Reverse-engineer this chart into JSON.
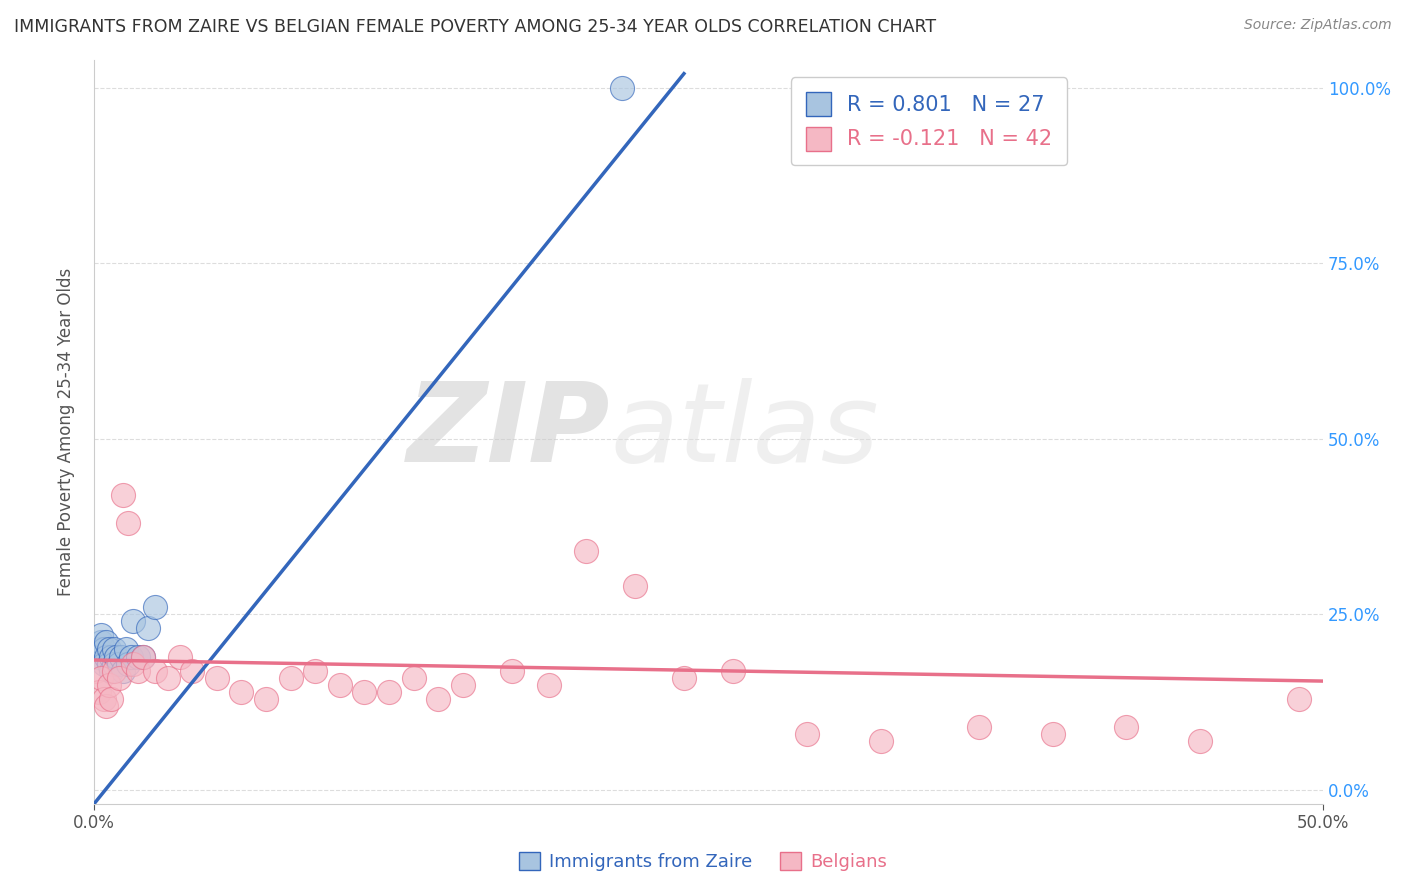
{
  "title": "IMMIGRANTS FROM ZAIRE VS BELGIAN FEMALE POVERTY AMONG 25-34 YEAR OLDS CORRELATION CHART",
  "source": "Source: ZipAtlas.com",
  "ylabel": "Female Poverty Among 25-34 Year Olds",
  "xlim": [
    0.0,
    0.5
  ],
  "ylim": [
    -0.02,
    1.04
  ],
  "xticklabels_bottom": [
    "0.0%",
    "50.0%"
  ],
  "xtickvalues_bottom": [
    0.0,
    0.5
  ],
  "yticklabels_right": [
    "100.0%",
    "75.0%",
    "50.0%",
    "25.0%",
    "0.0%"
  ],
  "ytickvalues_right": [
    1.0,
    0.75,
    0.5,
    0.25,
    0.0
  ],
  "blue_R": 0.801,
  "blue_N": 27,
  "pink_R": -0.121,
  "pink_N": 42,
  "blue_color": "#A8C4E0",
  "pink_color": "#F5B8C4",
  "blue_line_color": "#3366BB",
  "pink_line_color": "#E8708A",
  "legend_label_blue": "Immigrants from Zaire",
  "legend_label_pink": "Belgians",
  "watermark_zip": "ZIP",
  "watermark_atlas": "atlas",
  "grid_color": "#DDDDDD",
  "blue_points_x": [
    0.001,
    0.002,
    0.003,
    0.003,
    0.004,
    0.004,
    0.005,
    0.005,
    0.006,
    0.006,
    0.007,
    0.007,
    0.008,
    0.008,
    0.009,
    0.01,
    0.011,
    0.012,
    0.013,
    0.014,
    0.015,
    0.016,
    0.018,
    0.02,
    0.022,
    0.025,
    0.215
  ],
  "blue_points_y": [
    0.19,
    0.2,
    0.21,
    0.22,
    0.2,
    0.18,
    0.21,
    0.19,
    0.2,
    0.18,
    0.19,
    0.17,
    0.2,
    0.18,
    0.19,
    0.18,
    0.19,
    0.17,
    0.2,
    0.18,
    0.19,
    0.24,
    0.19,
    0.19,
    0.23,
    0.26,
    1.0
  ],
  "blue_line_x0": 0.0,
  "blue_line_y0": -0.02,
  "blue_line_x1": 0.24,
  "blue_line_y1": 1.02,
  "pink_line_x0": 0.0,
  "pink_line_y0": 0.185,
  "pink_line_x1": 0.5,
  "pink_line_y1": 0.155,
  "pink_points_x": [
    0.001,
    0.002,
    0.003,
    0.004,
    0.005,
    0.006,
    0.007,
    0.008,
    0.01,
    0.012,
    0.014,
    0.016,
    0.018,
    0.02,
    0.025,
    0.03,
    0.035,
    0.04,
    0.05,
    0.06,
    0.07,
    0.08,
    0.09,
    0.1,
    0.11,
    0.12,
    0.13,
    0.14,
    0.15,
    0.17,
    0.185,
    0.2,
    0.22,
    0.24,
    0.26,
    0.29,
    0.32,
    0.36,
    0.39,
    0.42,
    0.45,
    0.49
  ],
  "pink_points_y": [
    0.17,
    0.14,
    0.16,
    0.13,
    0.12,
    0.15,
    0.13,
    0.17,
    0.16,
    0.42,
    0.38,
    0.18,
    0.17,
    0.19,
    0.17,
    0.16,
    0.19,
    0.17,
    0.16,
    0.14,
    0.13,
    0.16,
    0.17,
    0.15,
    0.14,
    0.14,
    0.16,
    0.13,
    0.15,
    0.17,
    0.15,
    0.34,
    0.29,
    0.16,
    0.17,
    0.08,
    0.07,
    0.09,
    0.08,
    0.09,
    0.07,
    0.13
  ]
}
